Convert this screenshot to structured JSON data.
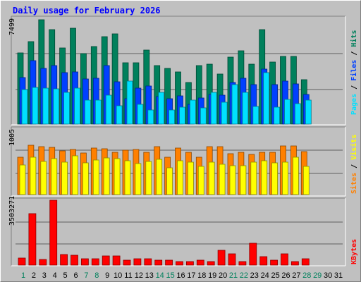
{
  "title": "Daily usage for February 2026",
  "legend": {
    "pages": "Pages",
    "files": "Files",
    "hits": "Hits",
    "sites": "Sites",
    "visits": "Visits",
    "kbytes": "KBytes",
    "sep": "/"
  },
  "colors": {
    "hits": "#00805c",
    "files": "#0040ff",
    "pages": "#00e0ff",
    "visits": "#ffff00",
    "sites": "#ff8000",
    "kbytes": "#ff0000",
    "title": "#0000ff",
    "weekend_day": "#00805c",
    "weekday": "#000000"
  },
  "chart_data": [
    {
      "type": "bar",
      "title": "Daily usage for February 2026",
      "ylabel": "7499",
      "ylim": [
        0,
        7499
      ],
      "categories": [
        "1",
        "2",
        "3",
        "4",
        "5",
        "6",
        "7",
        "8",
        "9",
        "10",
        "11",
        "12",
        "13",
        "14",
        "15",
        "16",
        "17",
        "18",
        "19",
        "20",
        "21",
        "22",
        "23",
        "24",
        "25",
        "26",
        "27",
        "28",
        "29",
        "30",
        "31"
      ],
      "series": [
        {
          "name": "Hits",
          "values": [
            5140,
            5950,
            7499,
            6780,
            5470,
            6880,
            5060,
            5580,
            6300,
            6480,
            4400,
            4400,
            5330,
            4230,
            4010,
            3770,
            3000,
            4230,
            4290,
            3590,
            4790,
            5290,
            4330,
            6780,
            4460,
            4860,
            4850,
            3180,
            0,
            0,
            0
          ]
        },
        {
          "name": "Files",
          "values": [
            3340,
            4570,
            4020,
            4210,
            3700,
            3760,
            3250,
            3290,
            4210,
            3040,
            1820,
            2590,
            2750,
            1970,
            1830,
            2010,
            1400,
            1890,
            2130,
            2060,
            2980,
            3290,
            2850,
            3940,
            2820,
            3100,
            2870,
            2130,
            0,
            0,
            0
          ]
        },
        {
          "name": "Pages",
          "values": [
            2460,
            2650,
            2580,
            2530,
            2260,
            2570,
            1730,
            1730,
            2060,
            1330,
            3080,
            1430,
            1010,
            2280,
            1010,
            1230,
            1710,
            1160,
            2260,
            1580,
            2860,
            2270,
            1280,
            3700,
            1230,
            1780,
            1470,
            1730,
            0,
            0,
            0
          ]
        }
      ]
    },
    {
      "type": "bar",
      "ylabel": "1005",
      "ylim": [
        0,
        1005
      ],
      "categories": [
        "1",
        "2",
        "3",
        "4",
        "5",
        "6",
        "7",
        "8",
        "9",
        "10",
        "11",
        "12",
        "13",
        "14",
        "15",
        "16",
        "17",
        "18",
        "19",
        "20",
        "21",
        "22",
        "23",
        "24",
        "25",
        "26",
        "27",
        "28",
        "29",
        "30",
        "31"
      ],
      "series": [
        {
          "name": "Sites",
          "values": [
            580,
            763,
            748,
            727,
            681,
            702,
            645,
            722,
            712,
            658,
            692,
            703,
            654,
            741,
            580,
            718,
            656,
            580,
            744,
            742,
            634,
            655,
            623,
            652,
            655,
            752,
            752,
            663,
            0,
            0,
            0
          ]
        },
        {
          "name": "Visits",
          "values": [
            460,
            580,
            514,
            557,
            500,
            601,
            496,
            532,
            570,
            560,
            520,
            478,
            511,
            550,
            415,
            524,
            502,
            440,
            499,
            470,
            450,
            450,
            500,
            520,
            490,
            500,
            580,
            440,
            0,
            0,
            0
          ]
        }
      ]
    },
    {
      "type": "bar",
      "ylabel": "3503271",
      "ylim": [
        0,
        3503271
      ],
      "categories": [
        "1",
        "2",
        "3",
        "4",
        "5",
        "6",
        "7",
        "8",
        "9",
        "10",
        "11",
        "12",
        "13",
        "14",
        "15",
        "16",
        "17",
        "18",
        "19",
        "20",
        "21",
        "22",
        "23",
        "24",
        "25",
        "26",
        "27",
        "28",
        "29",
        "30",
        "31"
      ],
      "series": [
        {
          "name": "KBytes",
          "values": [
            387000,
            2790000,
            316000,
            3503271,
            571000,
            534000,
            341000,
            324000,
            483000,
            483000,
            264000,
            324000,
            341000,
            264000,
            285000,
            202000,
            176000,
            264000,
            202000,
            783000,
            598000,
            202000,
            1170000,
            474000,
            283000,
            624000,
            202000,
            324000,
            0,
            0,
            0
          ]
        }
      ]
    }
  ],
  "x_labels": [
    "1",
    "2",
    "3",
    "4",
    "5",
    "6",
    "7",
    "8",
    "9",
    "10",
    "11",
    "12",
    "13",
    "14",
    "15",
    "16",
    "17",
    "18",
    "19",
    "20",
    "21",
    "22",
    "23",
    "24",
    "25",
    "26",
    "27",
    "28",
    "29",
    "30",
    "31"
  ],
  "weekend_days": [
    1,
    7,
    8,
    14,
    15,
    21,
    22,
    28,
    29
  ]
}
